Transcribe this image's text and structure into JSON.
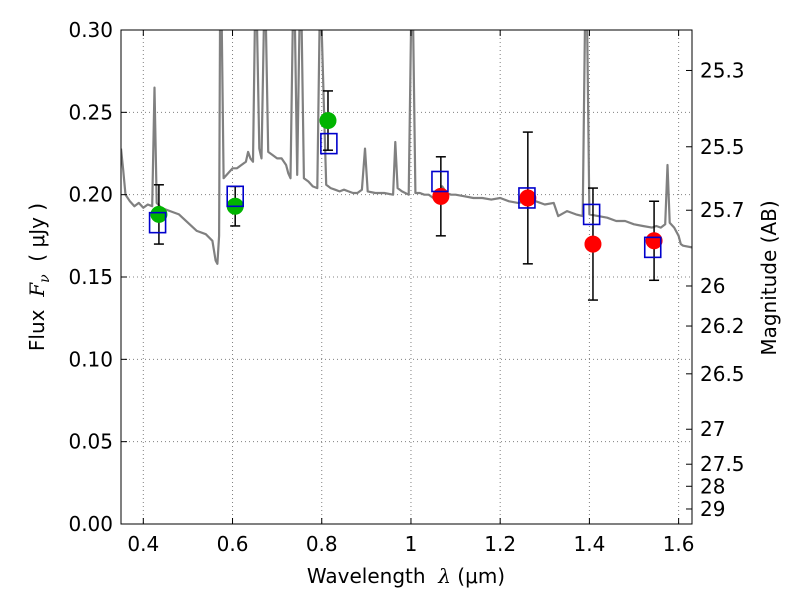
{
  "chart_data": {
    "type": "scatter",
    "xlabel": {
      "pre": "Wavelength  ",
      "symbol": "λ",
      "post": " (μm)"
    },
    "ylabel": {
      "pre": "Flux  ",
      "symbol": "F",
      "sub": "ν",
      "post": "  ( μJy )"
    },
    "y2label": "Magnitude (AB)",
    "xlim": [
      0.35,
      1.63
    ],
    "ylim": [
      0.0,
      0.3
    ],
    "grid": true,
    "xticks": [
      {
        "v": 0.4,
        "label": "0.4"
      },
      {
        "v": 0.6,
        "label": "0.6"
      },
      {
        "v": 0.8,
        "label": "0.8"
      },
      {
        "v": 1.0,
        "label": "1"
      },
      {
        "v": 1.2,
        "label": "1.2"
      },
      {
        "v": 1.4,
        "label": "1.4"
      },
      {
        "v": 1.6,
        "label": "1.6"
      }
    ],
    "yticks": [
      {
        "v": 0.0,
        "label": "0.00"
      },
      {
        "v": 0.05,
        "label": "0.05"
      },
      {
        "v": 0.1,
        "label": "0.10"
      },
      {
        "v": 0.15,
        "label": "0.15"
      },
      {
        "v": 0.2,
        "label": "0.20"
      },
      {
        "v": 0.25,
        "label": "0.25"
      },
      {
        "v": 0.3,
        "label": "0.30"
      }
    ],
    "mag_ticks": [
      "25.3",
      "25.5",
      "25.7",
      "26",
      "26.2",
      "26.5",
      "27",
      "27.5",
      "28",
      "29"
    ],
    "colors": {
      "model": "#808080",
      "green": "#00b400",
      "red": "#ff0000",
      "square": "#0000cc",
      "errorbar": "#000000",
      "grid": "#808080"
    },
    "series": [
      {
        "marker": "circle",
        "color": "green",
        "points": [
          {
            "x": 0.435,
            "y": 0.188,
            "err": 0.018
          },
          {
            "x": 0.606,
            "y": 0.193,
            "err": 0.012
          },
          {
            "x": 0.814,
            "y": 0.245,
            "err": 0.018
          }
        ]
      },
      {
        "marker": "circle",
        "color": "red",
        "points": [
          {
            "x": 1.067,
            "y": 0.199,
            "err": 0.024
          },
          {
            "x": 1.262,
            "y": 0.198,
            "err": 0.04
          },
          {
            "x": 1.408,
            "y": 0.17,
            "err": 0.034
          },
          {
            "x": 1.545,
            "y": 0.172,
            "err": 0.024
          }
        ]
      },
      {
        "marker": "square",
        "color": "square",
        "points": [
          {
            "x": 0.432,
            "y": 0.183
          },
          {
            "x": 0.606,
            "y": 0.199
          },
          {
            "x": 0.816,
            "y": 0.231
          },
          {
            "x": 1.065,
            "y": 0.208
          },
          {
            "x": 1.26,
            "y": 0.198
          },
          {
            "x": 1.405,
            "y": 0.188
          },
          {
            "x": 1.542,
            "y": 0.168
          }
        ]
      }
    ],
    "model_curve": [
      [
        0.35,
        0.228
      ],
      [
        0.355,
        0.215
      ],
      [
        0.36,
        0.2
      ],
      [
        0.37,
        0.196
      ],
      [
        0.38,
        0.193
      ],
      [
        0.39,
        0.195
      ],
      [
        0.4,
        0.192
      ],
      [
        0.41,
        0.194
      ],
      [
        0.42,
        0.193
      ],
      [
        0.425,
        0.265
      ],
      [
        0.43,
        0.195
      ],
      [
        0.44,
        0.192
      ],
      [
        0.46,
        0.19
      ],
      [
        0.48,
        0.188
      ],
      [
        0.5,
        0.183
      ],
      [
        0.52,
        0.178
      ],
      [
        0.54,
        0.176
      ],
      [
        0.555,
        0.172
      ],
      [
        0.562,
        0.16
      ],
      [
        0.566,
        0.158
      ],
      [
        0.57,
        0.175
      ],
      [
        0.572,
        0.3
      ],
      [
        0.576,
        0.3
      ],
      [
        0.58,
        0.21
      ],
      [
        0.59,
        0.213
      ],
      [
        0.6,
        0.216
      ],
      [
        0.61,
        0.216
      ],
      [
        0.62,
        0.218
      ],
      [
        0.63,
        0.22
      ],
      [
        0.635,
        0.226
      ],
      [
        0.64,
        0.222
      ],
      [
        0.646,
        0.22
      ],
      [
        0.65,
        0.3
      ],
      [
        0.655,
        0.3
      ],
      [
        0.66,
        0.228
      ],
      [
        0.665,
        0.222
      ],
      [
        0.67,
        0.3
      ],
      [
        0.675,
        0.3
      ],
      [
        0.68,
        0.226
      ],
      [
        0.69,
        0.224
      ],
      [
        0.7,
        0.222
      ],
      [
        0.71,
        0.222
      ],
      [
        0.72,
        0.218
      ],
      [
        0.725,
        0.213
      ],
      [
        0.73,
        0.21
      ],
      [
        0.735,
        0.3
      ],
      [
        0.74,
        0.3
      ],
      [
        0.745,
        0.212
      ],
      [
        0.75,
        0.3
      ],
      [
        0.755,
        0.3
      ],
      [
        0.76,
        0.21
      ],
      [
        0.77,
        0.208
      ],
      [
        0.78,
        0.205
      ],
      [
        0.79,
        0.204
      ],
      [
        0.795,
        0.3
      ],
      [
        0.8,
        0.3
      ],
      [
        0.81,
        0.206
      ],
      [
        0.82,
        0.204
      ],
      [
        0.83,
        0.203
      ],
      [
        0.84,
        0.202
      ],
      [
        0.85,
        0.203
      ],
      [
        0.86,
        0.202
      ],
      [
        0.87,
        0.201
      ],
      [
        0.88,
        0.201
      ],
      [
        0.89,
        0.203
      ],
      [
        0.897,
        0.228
      ],
      [
        0.903,
        0.202
      ],
      [
        0.92,
        0.201
      ],
      [
        0.94,
        0.201
      ],
      [
        0.96,
        0.2
      ],
      [
        0.965,
        0.232
      ],
      [
        0.97,
        0.204
      ],
      [
        0.98,
        0.202
      ],
      [
        0.995,
        0.2
      ],
      [
        1.0,
        0.3
      ],
      [
        1.005,
        0.3
      ],
      [
        1.01,
        0.201
      ],
      [
        1.02,
        0.201
      ],
      [
        1.03,
        0.2
      ],
      [
        1.04,
        0.2
      ],
      [
        1.05,
        0.198
      ],
      [
        1.06,
        0.2
      ],
      [
        1.07,
        0.205
      ],
      [
        1.08,
        0.201
      ],
      [
        1.09,
        0.2
      ],
      [
        1.1,
        0.2
      ],
      [
        1.12,
        0.199
      ],
      [
        1.14,
        0.198
      ],
      [
        1.16,
        0.198
      ],
      [
        1.18,
        0.197
      ],
      [
        1.2,
        0.198
      ],
      [
        1.22,
        0.196
      ],
      [
        1.24,
        0.195
      ],
      [
        1.26,
        0.196
      ],
      [
        1.28,
        0.196
      ],
      [
        1.3,
        0.194
      ],
      [
        1.32,
        0.195
      ],
      [
        1.33,
        0.187
      ],
      [
        1.35,
        0.19
      ],
      [
        1.37,
        0.188
      ],
      [
        1.385,
        0.187
      ],
      [
        1.39,
        0.3
      ],
      [
        1.395,
        0.3
      ],
      [
        1.4,
        0.188
      ],
      [
        1.42,
        0.187
      ],
      [
        1.44,
        0.186
      ],
      [
        1.46,
        0.184
      ],
      [
        1.48,
        0.184
      ],
      [
        1.5,
        0.182
      ],
      [
        1.52,
        0.181
      ],
      [
        1.54,
        0.18
      ],
      [
        1.55,
        0.181
      ],
      [
        1.56,
        0.18
      ],
      [
        1.57,
        0.182
      ],
      [
        1.575,
        0.218
      ],
      [
        1.58,
        0.183
      ],
      [
        1.59,
        0.18
      ],
      [
        1.6,
        0.175
      ],
      [
        1.605,
        0.17
      ],
      [
        1.61,
        0.169
      ],
      [
        1.63,
        0.168
      ]
    ]
  }
}
